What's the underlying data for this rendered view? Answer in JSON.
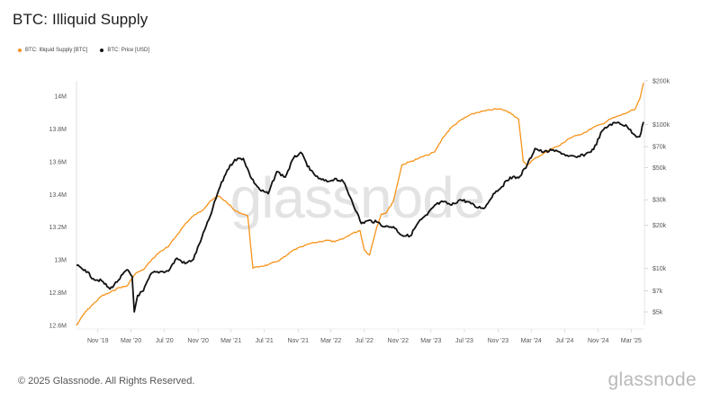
{
  "chart_data": {
    "type": "line",
    "title": "BTC: Illiquid Supply",
    "legend_position": "top-left",
    "grid": false,
    "x_ticks": [
      "Nov '19",
      "Mar '20",
      "Jul '20",
      "Nov '20",
      "Mar '21",
      "Jul '21",
      "Nov '21",
      "Mar '22",
      "Jul '22",
      "Nov '22",
      "Mar '23",
      "Jul '23",
      "Nov '23",
      "Mar '24",
      "Jul '24",
      "Nov '24",
      "Mar '25"
    ],
    "y_left": {
      "ticks": [
        "14M",
        "13.8M",
        "13.6M",
        "13.4M",
        "13.2M",
        "13M",
        "12.8M",
        "12.6M"
      ],
      "ylim": [
        12600000,
        14000000
      ]
    },
    "y_right": {
      "scale": "log",
      "ticks": [
        "$200k",
        "$100k",
        "$70k",
        "$50k",
        "$30k",
        "$20k",
        "$10k",
        "$7k",
        "$5k"
      ]
    },
    "series": [
      {
        "name": "BTC: Illiquid Supply [BTC]",
        "axis": "left",
        "color": "#f7931a",
        "x": [
          "2019-08-15",
          "2019-09-15",
          "2019-10-15",
          "2019-11-15",
          "2019-12-15",
          "2020-01-15",
          "2020-02-15",
          "2020-03-10",
          "2020-03-20",
          "2020-04-15",
          "2020-05-15",
          "2020-06-15",
          "2020-07-15",
          "2020-08-15",
          "2020-09-15",
          "2020-10-15",
          "2020-11-15",
          "2020-12-15",
          "2021-01-15",
          "2021-02-15",
          "2021-03-15",
          "2021-04-15",
          "2021-05-01",
          "2021-05-20",
          "2021-06-15",
          "2021-07-15",
          "2021-08-15",
          "2021-09-15",
          "2021-10-15",
          "2021-11-15",
          "2021-12-15",
          "2022-01-15",
          "2022-02-15",
          "2022-03-15",
          "2022-04-15",
          "2022-05-15",
          "2022-06-15",
          "2022-07-01",
          "2022-07-20",
          "2022-08-15",
          "2022-09-01",
          "2022-09-20",
          "2022-10-15",
          "2022-11-15",
          "2022-12-15",
          "2023-01-15",
          "2023-02-15",
          "2023-03-15",
          "2023-04-15",
          "2023-05-15",
          "2023-06-15",
          "2023-07-15",
          "2023-08-15",
          "2023-09-15",
          "2023-10-15",
          "2023-11-15",
          "2023-12-15",
          "2024-01-15",
          "2024-02-01",
          "2024-02-15",
          "2024-03-15",
          "2024-04-15",
          "2024-05-15",
          "2024-06-15",
          "2024-07-15",
          "2024-08-15",
          "2024-09-15",
          "2024-10-15",
          "2024-11-15",
          "2024-12-15",
          "2025-01-15",
          "2025-02-15",
          "2025-03-15",
          "2025-04-01",
          "2025-04-15"
        ],
        "values": [
          12600000,
          12680000,
          12730000,
          12780000,
          12800000,
          12830000,
          12840000,
          12900000,
          12920000,
          12940000,
          13000000,
          13050000,
          13080000,
          13150000,
          13220000,
          13270000,
          13300000,
          13360000,
          13390000,
          13350000,
          13300000,
          13280000,
          13270000,
          12950000,
          12960000,
          12970000,
          12990000,
          13020000,
          13060000,
          13080000,
          13100000,
          13110000,
          13120000,
          13110000,
          13130000,
          13160000,
          13180000,
          13060000,
          13030000,
          13200000,
          13280000,
          13290000,
          13360000,
          13580000,
          13600000,
          13620000,
          13640000,
          13660000,
          13750000,
          13810000,
          13850000,
          13880000,
          13900000,
          13910000,
          13920000,
          13920000,
          13900000,
          13860000,
          13600000,
          13580000,
          13620000,
          13650000,
          13680000,
          13700000,
          13740000,
          13760000,
          13780000,
          13810000,
          13830000,
          13860000,
          13880000,
          13900000,
          13920000,
          13980000,
          14080000
        ]
      },
      {
        "name": "BTC: Price [USD]",
        "axis": "right",
        "color": "#111111",
        "x": [
          "2019-08-15",
          "2019-09-15",
          "2019-10-15",
          "2019-11-15",
          "2019-12-15",
          "2020-01-15",
          "2020-02-15",
          "2020-03-05",
          "2020-03-13",
          "2020-03-25",
          "2020-04-15",
          "2020-05-15",
          "2020-06-15",
          "2020-07-15",
          "2020-08-15",
          "2020-09-15",
          "2020-10-15",
          "2020-11-15",
          "2020-12-15",
          "2021-01-15",
          "2021-02-15",
          "2021-03-15",
          "2021-04-15",
          "2021-05-15",
          "2021-06-15",
          "2021-07-15",
          "2021-08-15",
          "2021-09-15",
          "2021-10-15",
          "2021-11-10",
          "2021-12-15",
          "2022-01-15",
          "2022-02-15",
          "2022-03-15",
          "2022-04-15",
          "2022-05-15",
          "2022-06-20",
          "2022-07-15",
          "2022-08-15",
          "2022-09-15",
          "2022-10-15",
          "2022-11-15",
          "2022-12-15",
          "2023-01-15",
          "2023-02-15",
          "2023-03-15",
          "2023-04-15",
          "2023-05-15",
          "2023-06-15",
          "2023-07-15",
          "2023-08-15",
          "2023-09-15",
          "2023-10-15",
          "2023-11-15",
          "2023-12-15",
          "2024-01-15",
          "2024-02-15",
          "2024-03-15",
          "2024-04-15",
          "2024-05-15",
          "2024-06-15",
          "2024-07-15",
          "2024-08-15",
          "2024-09-15",
          "2024-10-15",
          "2024-11-15",
          "2024-12-15",
          "2025-01-15",
          "2025-02-15",
          "2025-03-15",
          "2025-04-01",
          "2025-04-15"
        ],
        "values": [
          10500,
          9800,
          8500,
          8200,
          7200,
          8300,
          9800,
          8800,
          5000,
          6500,
          7000,
          9300,
          9500,
          9600,
          11800,
          10800,
          11600,
          16500,
          23000,
          35000,
          48000,
          57000,
          58000,
          42000,
          35000,
          33000,
          47000,
          43000,
          58000,
          64000,
          48000,
          42000,
          40000,
          42000,
          40000,
          30000,
          20500,
          21500,
          21000,
          19500,
          19500,
          17000,
          16800,
          21000,
          23500,
          27500,
          29000,
          27500,
          30000,
          29000,
          26500,
          26500,
          33000,
          37000,
          43000,
          42500,
          52000,
          68000,
          64000,
          66000,
          64000,
          60000,
          59000,
          62000,
          67000,
          90000,
          100000,
          103000,
          96000,
          84000,
          82000,
          104000
        ]
      }
    ]
  },
  "watermark": "glassnode",
  "footer": {
    "copyright": "© 2025 Glassnode. All Rights Reserved.",
    "brand": "glassnode"
  }
}
